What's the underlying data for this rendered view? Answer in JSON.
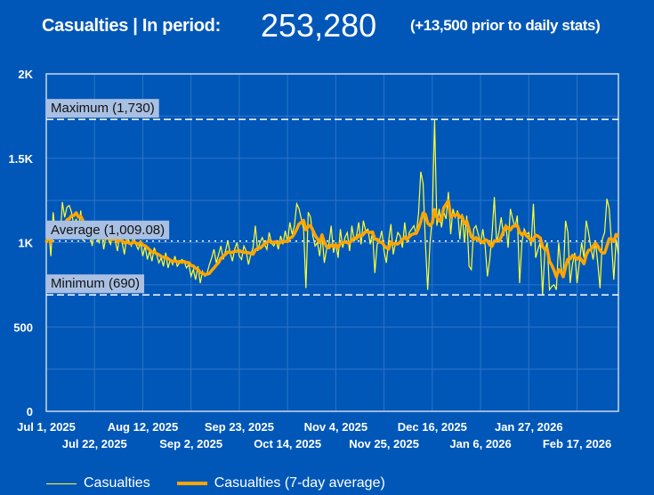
{
  "header": {
    "title": "Casualties | In period:",
    "total": "253,280",
    "note": "(+13,500 prior to daily stats)"
  },
  "colors": {
    "background": "#0057b8",
    "daily": "#ffff33",
    "average": "#ffa500",
    "ref_label_bg": "#a9c0e3"
  },
  "chart_data": {
    "type": "line",
    "start_date": "Jul 1, 2025",
    "x_tick_labels": [
      "Jul 1, 2025",
      "Jul 22, 2025",
      "Aug 12, 2025",
      "Sep 2, 2025",
      "Sep 23, 2025",
      "Oct 14, 2025",
      "Nov 4, 2025",
      "Nov 25, 2025",
      "Dec 16, 2025",
      "Jan 6, 2026",
      "Jan 27, 2026",
      "Feb 17, 2026"
    ],
    "x_tick_interval_days": 21,
    "y_tick_labels": [
      "0",
      "500",
      "1K",
      "1.5K",
      "2K"
    ],
    "y_ticks": [
      0,
      500,
      1000,
      1500,
      2000
    ],
    "ylim": [
      0,
      2000
    ],
    "grid": true,
    "legend_position": "bottom",
    "series": [
      {
        "name": "Casualties",
        "values": [
          1000,
          1080,
          920,
          1180,
          1050,
          1100,
          1020,
          1240,
          1150,
          1210,
          1220,
          1180,
          1100,
          1140,
          1060,
          1190,
          1010,
          1080,
          1120,
          1050,
          980,
          1090,
          1030,
          1000,
          1070,
          960,
          1040,
          1020,
          990,
          1060,
          1010,
          950,
          1050,
          1000,
          930,
          1030,
          1010,
          980,
          1040,
          990,
          960,
          1000,
          920,
          980,
          900,
          950,
          890,
          970,
          930,
          880,
          910,
          860,
          940,
          850,
          900,
          870,
          920,
          860,
          880,
          900,
          890,
          850,
          870,
          800,
          840,
          780,
          860,
          760,
          830,
          800,
          820,
          870,
          910,
          960,
          880,
          930,
          980,
          900,
          950,
          1010,
          940,
          890,
          960,
          1000,
          920,
          900,
          980,
          950,
          870,
          930,
          970,
          1100,
          950,
          1000,
          1030,
          990,
          960,
          1060,
          1000,
          980,
          1010,
          960,
          1040,
          990,
          1070,
          1000,
          1120,
          1050,
          1100,
          1230,
          1200,
          1140,
          1080,
          730,
          1180,
          1150,
          1040,
          980,
          1000,
          920,
          1050,
          880,
          960,
          990,
          1100,
          940,
          1000,
          910,
          1080,
          970,
          1030,
          1060,
          950,
          1100,
          1010,
          1040,
          1120,
          990,
          1130,
          1070,
          1080,
          990,
          1060,
          820,
          990,
          1010,
          1070,
          950,
          880,
          1010,
          1110,
          930,
          1000,
          1060,
          1040,
          970,
          1120,
          1000,
          1060,
          1080,
          1100,
          1050,
          1170,
          1420,
          1350,
          1000,
          720,
          1000,
          1150,
          1730,
          1100,
          1200,
          1090,
          1180,
          1140,
          1300,
          1050,
          1200,
          1150,
          1190,
          1020,
          1170,
          1000,
          1160,
          860,
          840,
          1080,
          1100,
          1050,
          990,
          1080,
          980,
          800,
          900,
          1050,
          1270,
          1000,
          1060,
          1150,
          1040,
          1110,
          970,
          1200,
          1140,
          1090,
          1160,
          760,
          1000,
          1080,
          1050,
          1060,
          980,
          1230,
          910,
          960,
          1000,
          690,
          950,
          1000,
          720,
          740,
          750,
          720,
          1000,
          860,
          790,
          1130,
          1060,
          760,
          870,
          940,
          760,
          880,
          1000,
          910,
          1130,
          1060,
          970,
          900,
          1010,
          880,
          730,
          1020,
          1060,
          1260,
          1200,
          1000,
          780,
          1020,
          930
        ]
      },
      {
        "name": "Casualties (7-day average)",
        "derived_from": "Casualties",
        "window_days": 7
      }
    ],
    "reference_lines": [
      {
        "label": "Maximum (1,730)",
        "value": 1730,
        "style": "dashed"
      },
      {
        "label": "Average (1,009.08)",
        "value": 1009.08,
        "style": "dotted"
      },
      {
        "label": "Minimum (690)",
        "value": 690,
        "style": "dashed"
      }
    ]
  },
  "legend": {
    "items": [
      "Casualties",
      "Casualties (7-day average)"
    ]
  }
}
